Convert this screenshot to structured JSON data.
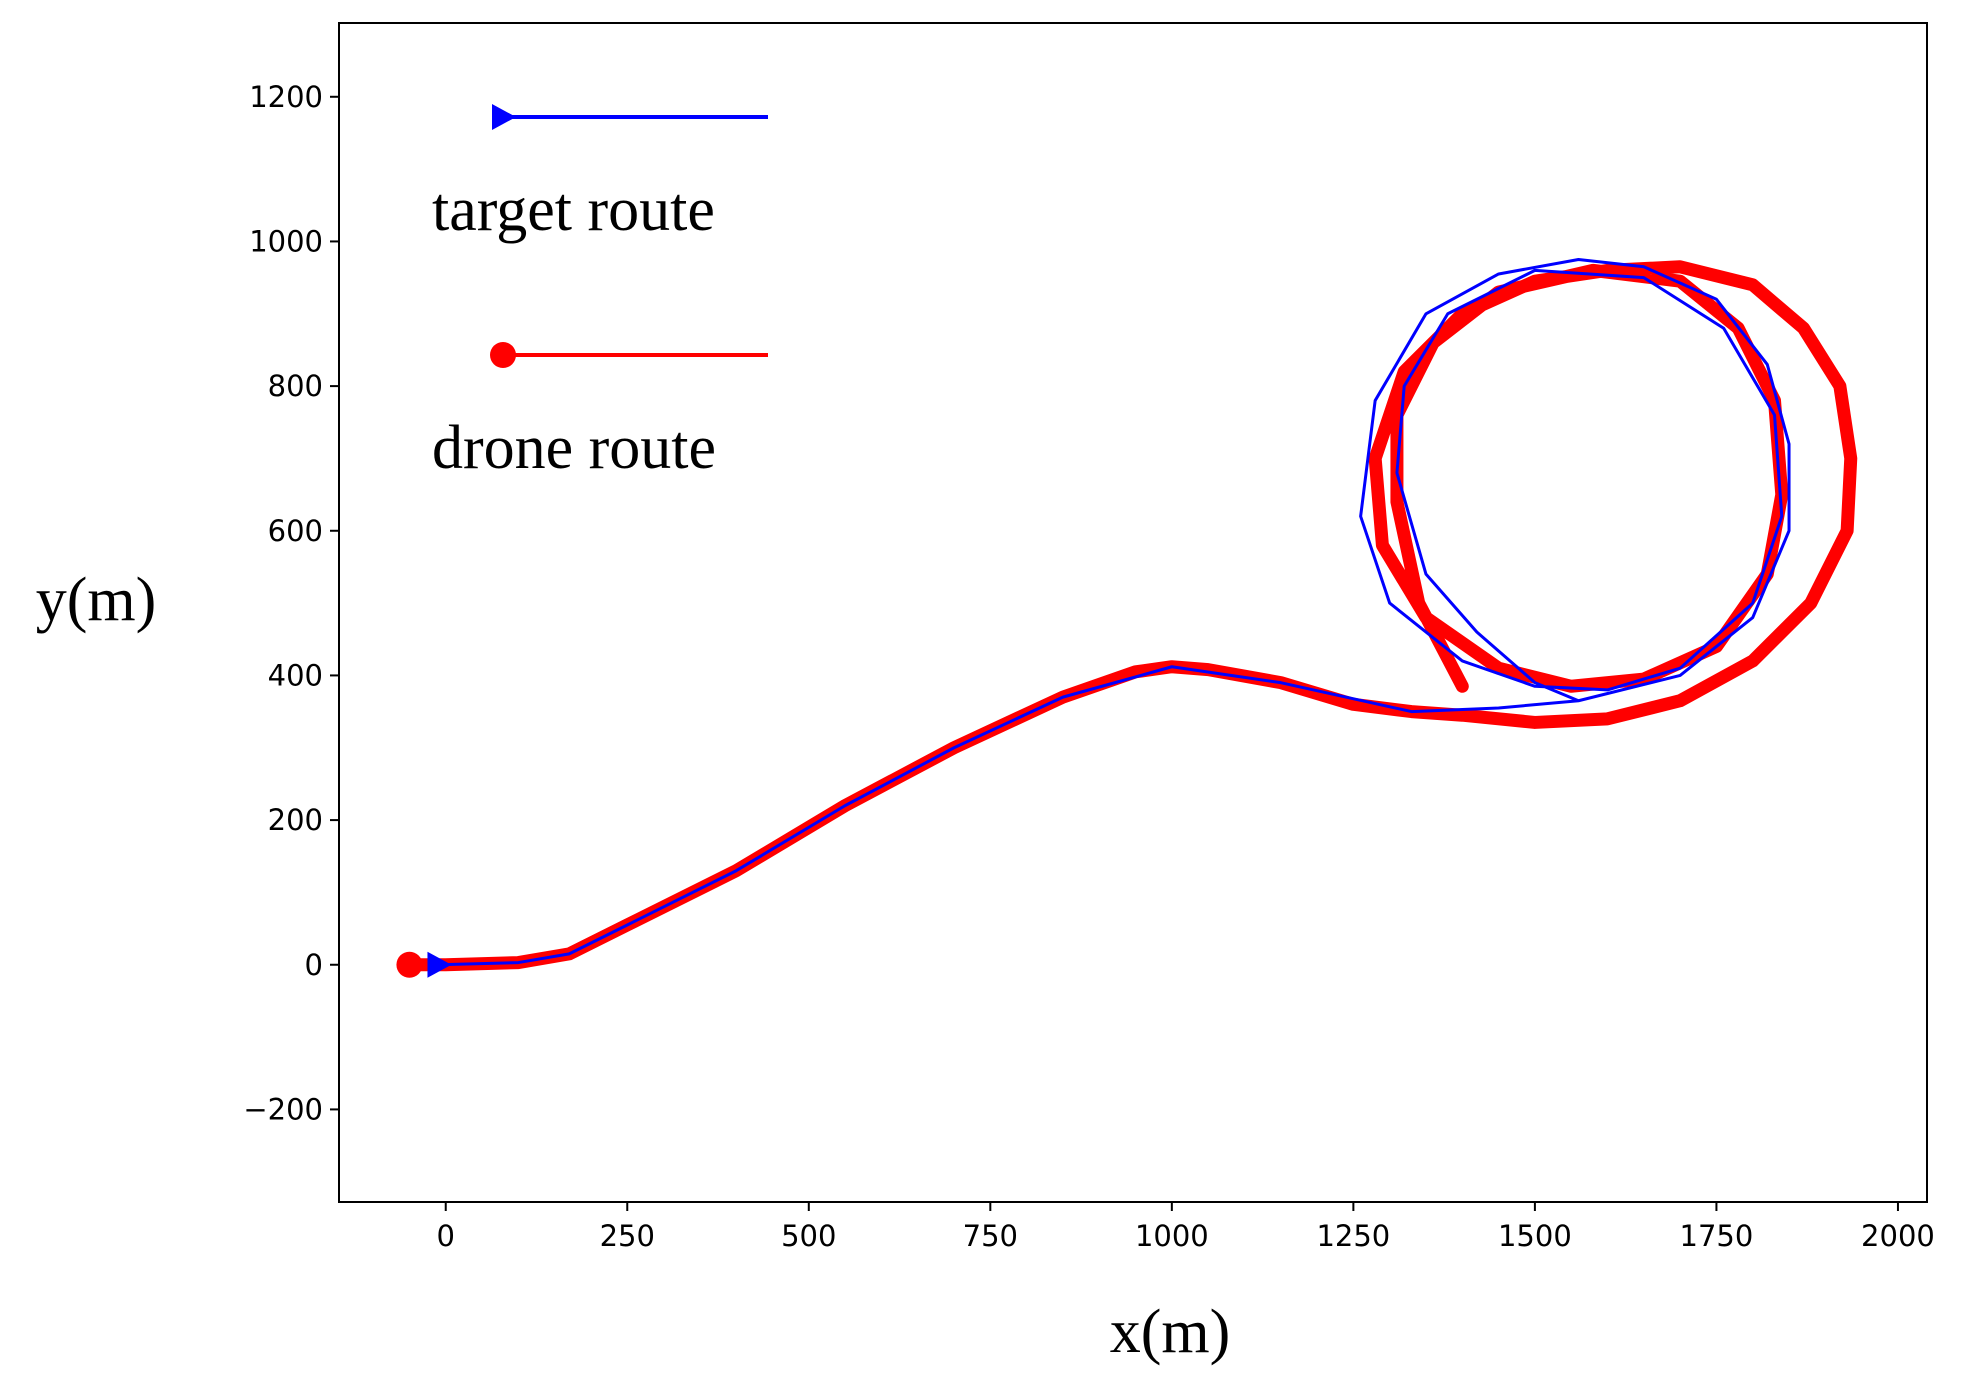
{
  "chart_data": {
    "type": "line",
    "x_label": "x(m)",
    "y_label": "y(m)",
    "xlim": [
      -147,
      2040
    ],
    "ylim": [
      -328,
      1302
    ],
    "xticks": [
      0,
      250,
      500,
      750,
      1000,
      1250,
      1500,
      1750,
      2000
    ],
    "yticks": [
      {
        "value": -200,
        "label": "−200"
      },
      0,
      200,
      400,
      600,
      800,
      1000,
      1200
    ],
    "legend_position": "upper left",
    "series": [
      {
        "name": "target route",
        "color": "#0000ff",
        "marker": "triangle",
        "x": [
          -10,
          100,
          170,
          250,
          400,
          550,
          700,
          850,
          1000,
          1150,
          1330,
          1450,
          1560,
          1700,
          1800,
          1850,
          1850,
          1820,
          1750,
          1650,
          1560,
          1450,
          1350,
          1280,
          1260,
          1300,
          1400,
          1500,
          1600,
          1700,
          1800,
          1840,
          1830,
          1760,
          1650,
          1500,
          1380,
          1320,
          1310,
          1350,
          1420,
          1500,
          1560
        ],
        "y": [
          0,
          3,
          15,
          55,
          130,
          220,
          300,
          370,
          412,
          390,
          350,
          355,
          365,
          400,
          480,
          600,
          720,
          830,
          920,
          965,
          975,
          955,
          900,
          780,
          620,
          500,
          420,
          385,
          380,
          410,
          500,
          620,
          760,
          880,
          950,
          960,
          900,
          800,
          680,
          540,
          460,
          390,
          365
        ]
      },
      {
        "name": "drone route",
        "color": "#ff0000",
        "marker": "circle",
        "x": [
          -50,
          0,
          100,
          170,
          250,
          400,
          550,
          700,
          850,
          950,
          1000,
          1050,
          1150,
          1250,
          1330,
          1400,
          1500,
          1600,
          1700,
          1800,
          1880,
          1930,
          1935,
          1920,
          1870,
          1800,
          1700,
          1600,
          1500,
          1400,
          1320,
          1280,
          1290,
          1350,
          1450,
          1550,
          1650,
          1750,
          1820,
          1840,
          1830,
          1780,
          1700,
          1580,
          1450,
          1360,
          1310,
          1310,
          1340,
          1400
        ],
        "y": [
          0,
          0,
          3,
          15,
          55,
          130,
          220,
          300,
          370,
          405,
          412,
          408,
          390,
          360,
          350,
          345,
          335,
          340,
          365,
          420,
          500,
          600,
          700,
          800,
          880,
          940,
          965,
          960,
          945,
          900,
          820,
          700,
          580,
          480,
          410,
          385,
          395,
          440,
          540,
          650,
          780,
          880,
          945,
          960,
          930,
          860,
          760,
          640,
          500,
          385
        ]
      }
    ]
  }
}
